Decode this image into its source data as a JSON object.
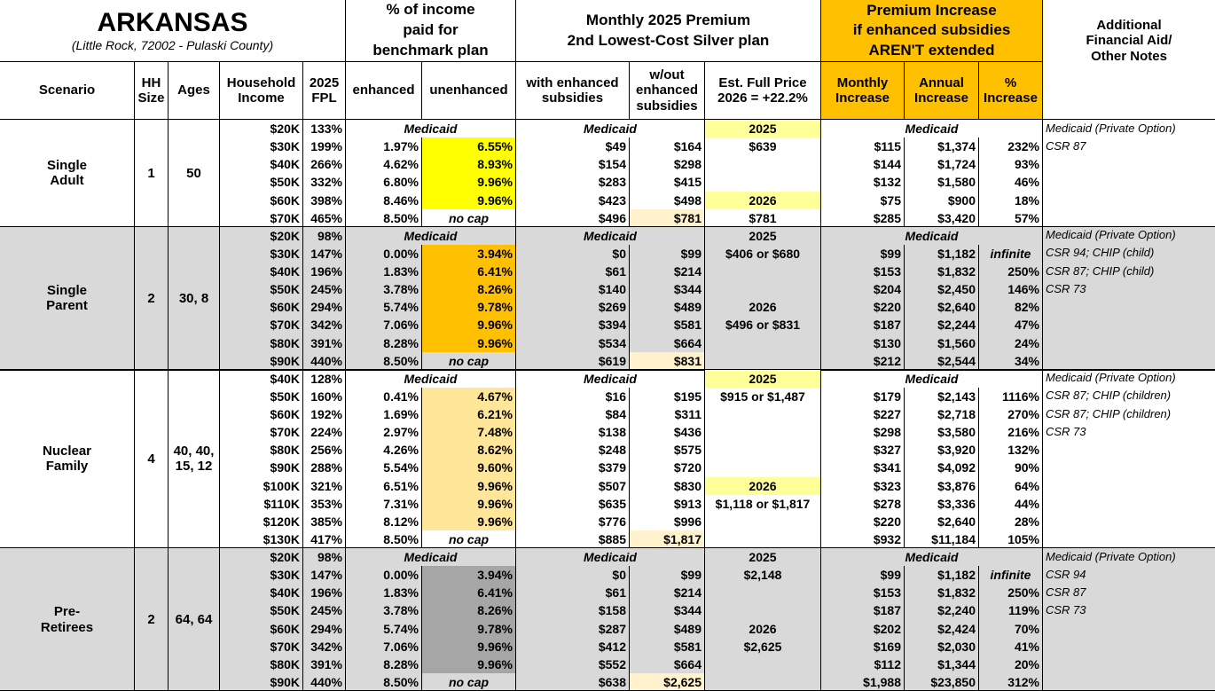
{
  "header": {
    "title": "ARKANSAS",
    "subtitle": "(Little Rock, 72002 - Pulaski County)",
    "pct_group": "% of income\npaid for\nbenchmark plan",
    "premium_group": "Monthly 2025 Premium\n2nd Lowest-Cost Silver plan",
    "increase_group": "Premium Increase\nif enhanced subsidies\nAREN'T extended",
    "notes": "Additional\nFinancial Aid/\nOther Notes",
    "columns": [
      "Scenario",
      "HH\nSize",
      "Ages",
      "Household\nIncome",
      "2025\nFPL",
      "enhanced",
      "unenhanced",
      "with enhanced\nsubsidies",
      "w/out\nenhanced\nsubsidies",
      "Est. Full Price\n2026 = +22.2%",
      "Monthly\nIncrease",
      "Annual\nIncrease",
      "%\nIncrease"
    ]
  },
  "groups": [
    {
      "scenario": "Single\nAdult",
      "hh_size": "1",
      "ages": "50",
      "rows": [
        {
          "income": "$20K",
          "fpl": "133%",
          "medicaid_pct": "Medicaid",
          "medicaid_premium": "Medicaid",
          "est_year": "2025",
          "medicaid_increase": "Medicaid",
          "note": "Medicaid (Private Option)"
        },
        {
          "income": "$30K",
          "fpl": "199%",
          "enhanced": "1.97%",
          "unenhanced": "6.55%",
          "with": "$49",
          "without": "$164",
          "est": "$639",
          "monthly": "$115",
          "annual": "$1,374",
          "increase": "232%",
          "note": "CSR 87"
        },
        {
          "income": "$40K",
          "fpl": "266%",
          "enhanced": "4.62%",
          "unenhanced": "8.93%",
          "with": "$154",
          "without": "$298",
          "monthly": "$144",
          "annual": "$1,724",
          "increase": "93%"
        },
        {
          "income": "$50K",
          "fpl": "332%",
          "enhanced": "6.80%",
          "unenhanced": "9.96%",
          "with": "$283",
          "without": "$415",
          "monthly": "$132",
          "annual": "$1,580",
          "increase": "46%"
        },
        {
          "income": "$60K",
          "fpl": "398%",
          "enhanced": "8.46%",
          "unenhanced": "9.96%",
          "with": "$423",
          "without": "$498",
          "est_year": "2026",
          "monthly": "$75",
          "annual": "$900",
          "increase": "18%"
        },
        {
          "income": "$70K",
          "fpl": "465%",
          "enhanced": "8.50%",
          "no_cap": "no cap",
          "with": "$496",
          "without": "$781",
          "est": "$781",
          "monthly": "$285",
          "annual": "$3,420",
          "increase": "57%"
        }
      ]
    },
    {
      "scenario": "Single\nParent",
      "hh_size": "2",
      "ages": "30, 8",
      "rows": [
        {
          "income": "$20K",
          "fpl": "98%",
          "medicaid_pct": "Medicaid",
          "medicaid_premium": "Medicaid",
          "est_year": "2025",
          "medicaid_increase": "Medicaid",
          "note": "Medicaid (Private Option)"
        },
        {
          "income": "$30K",
          "fpl": "147%",
          "enhanced": "0.00%",
          "unenhanced": "3.94%",
          "with": "$0",
          "without": "$99",
          "est": "$406 or $680",
          "monthly": "$99",
          "annual": "$1,182",
          "increase": "infinite",
          "note": "CSR 94; CHIP (child)"
        },
        {
          "income": "$40K",
          "fpl": "196%",
          "enhanced": "1.83%",
          "unenhanced": "6.41%",
          "with": "$61",
          "without": "$214",
          "monthly": "$153",
          "annual": "$1,832",
          "increase": "250%",
          "note": "CSR 87; CHIP (child)"
        },
        {
          "income": "$50K",
          "fpl": "245%",
          "enhanced": "3.78%",
          "unenhanced": "8.26%",
          "with": "$140",
          "without": "$344",
          "monthly": "$204",
          "annual": "$2,450",
          "increase": "146%",
          "note": "CSR 73"
        },
        {
          "income": "$60K",
          "fpl": "294%",
          "enhanced": "5.74%",
          "unenhanced": "9.78%",
          "with": "$269",
          "without": "$489",
          "est_year": "2026",
          "monthly": "$220",
          "annual": "$2,640",
          "increase": "82%"
        },
        {
          "income": "$70K",
          "fpl": "342%",
          "enhanced": "7.06%",
          "unenhanced": "9.96%",
          "with": "$394",
          "without": "$581",
          "est": "$496 or $831",
          "monthly": "$187",
          "annual": "$2,244",
          "increase": "47%"
        },
        {
          "income": "$80K",
          "fpl": "391%",
          "enhanced": "8.28%",
          "unenhanced": "9.96%",
          "with": "$534",
          "without": "$664",
          "monthly": "$130",
          "annual": "$1,560",
          "increase": "24%"
        },
        {
          "income": "$90K",
          "fpl": "440%",
          "enhanced": "8.50%",
          "no_cap": "no cap",
          "with": "$619",
          "without": "$831",
          "monthly": "$212",
          "annual": "$2,544",
          "increase": "34%"
        }
      ]
    },
    {
      "scenario": "Nuclear\nFamily",
      "hh_size": "4",
      "ages": "40, 40,\n15, 12",
      "rows": [
        {
          "income": "$40K",
          "fpl": "128%",
          "medicaid_pct": "Medicaid",
          "medicaid_premium": "Medicaid",
          "est_year": "2025",
          "medicaid_increase": "Medicaid",
          "note": "Medicaid (Private Option)"
        },
        {
          "income": "$50K",
          "fpl": "160%",
          "enhanced": "0.41%",
          "unenhanced": "4.67%",
          "with": "$16",
          "without": "$195",
          "est": "$915 or $1,487",
          "monthly": "$179",
          "annual": "$2,143",
          "increase": "1116%",
          "note": "CSR 87; CHIP (children)"
        },
        {
          "income": "$60K",
          "fpl": "192%",
          "enhanced": "1.69%",
          "unenhanced": "6.21%",
          "with": "$84",
          "without": "$311",
          "monthly": "$227",
          "annual": "$2,718",
          "increase": "270%",
          "note": "CSR 87; CHIP (children)"
        },
        {
          "income": "$70K",
          "fpl": "224%",
          "enhanced": "2.97%",
          "unenhanced": "7.48%",
          "with": "$138",
          "without": "$436",
          "monthly": "$298",
          "annual": "$3,580",
          "increase": "216%",
          "note": "CSR 73"
        },
        {
          "income": "$80K",
          "fpl": "256%",
          "enhanced": "4.26%",
          "unenhanced": "8.62%",
          "with": "$248",
          "without": "$575",
          "monthly": "$327",
          "annual": "$3,920",
          "increase": "132%"
        },
        {
          "income": "$90K",
          "fpl": "288%",
          "enhanced": "5.54%",
          "unenhanced": "9.60%",
          "with": "$379",
          "without": "$720",
          "monthly": "$341",
          "annual": "$4,092",
          "increase": "90%"
        },
        {
          "income": "$100K",
          "fpl": "321%",
          "enhanced": "6.51%",
          "unenhanced": "9.96%",
          "with": "$507",
          "without": "$830",
          "est_year": "2026",
          "monthly": "$323",
          "annual": "$3,876",
          "increase": "64%"
        },
        {
          "income": "$110K",
          "fpl": "353%",
          "enhanced": "7.31%",
          "unenhanced": "9.96%",
          "with": "$635",
          "without": "$913",
          "est": "$1,118 or $1,817",
          "monthly": "$278",
          "annual": "$3,336",
          "increase": "44%"
        },
        {
          "income": "$120K",
          "fpl": "385%",
          "enhanced": "8.12%",
          "unenhanced": "9.96%",
          "with": "$776",
          "without": "$996",
          "monthly": "$220",
          "annual": "$2,640",
          "increase": "28%"
        },
        {
          "income": "$130K",
          "fpl": "417%",
          "enhanced": "8.50%",
          "no_cap": "no cap",
          "with": "$885",
          "without": "$1,817",
          "monthly": "$932",
          "annual": "$11,184",
          "increase": "105%"
        }
      ]
    },
    {
      "scenario": "Pre-\nRetirees",
      "hh_size": "2",
      "ages": "64, 64",
      "rows": [
        {
          "income": "$20K",
          "fpl": "98%",
          "medicaid_pct": "Medicaid",
          "medicaid_premium": "Medicaid",
          "est_year": "2025",
          "medicaid_increase": "Medicaid",
          "note": "Medicaid (Private Option)"
        },
        {
          "income": "$30K",
          "fpl": "147%",
          "enhanced": "0.00%",
          "unenhanced": "3.94%",
          "with": "$0",
          "without": "$99",
          "est": "$2,148",
          "monthly": "$99",
          "annual": "$1,182",
          "increase": "infinite",
          "note": "CSR 94"
        },
        {
          "income": "$40K",
          "fpl": "196%",
          "enhanced": "1.83%",
          "unenhanced": "6.41%",
          "with": "$61",
          "without": "$214",
          "monthly": "$153",
          "annual": "$1,832",
          "increase": "250%",
          "note": "CSR 87"
        },
        {
          "income": "$50K",
          "fpl": "245%",
          "enhanced": "3.78%",
          "unenhanced": "8.26%",
          "with": "$158",
          "without": "$344",
          "monthly": "$187",
          "annual": "$2,240",
          "increase": "119%",
          "note": "CSR 73"
        },
        {
          "income": "$60K",
          "fpl": "294%",
          "enhanced": "5.74%",
          "unenhanced": "9.78%",
          "with": "$287",
          "without": "$489",
          "est_year": "2026",
          "monthly": "$202",
          "annual": "$2,424",
          "increase": "70%"
        },
        {
          "income": "$70K",
          "fpl": "342%",
          "enhanced": "7.06%",
          "unenhanced": "9.96%",
          "with": "$412",
          "without": "$581",
          "est": "$2,625",
          "monthly": "$169",
          "annual": "$2,030",
          "increase": "41%"
        },
        {
          "income": "$80K",
          "fpl": "391%",
          "enhanced": "8.28%",
          "unenhanced": "9.96%",
          "with": "$552",
          "without": "$664",
          "monthly": "$112",
          "annual": "$1,344",
          "increase": "20%"
        },
        {
          "income": "$90K",
          "fpl": "440%",
          "enhanced": "8.50%",
          "no_cap": "no cap",
          "with": "$638",
          "without": "$2,625",
          "monthly": "$1,988",
          "annual": "$23,850",
          "increase": "312%"
        }
      ]
    }
  ]
}
